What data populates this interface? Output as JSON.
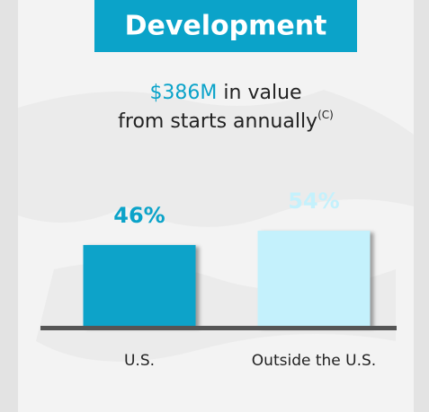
{
  "header": {
    "title": "Development"
  },
  "subtitle": {
    "highlight": "$386M",
    "text1": "in value",
    "text2": "from starts annually",
    "note": "(C)"
  },
  "chart_data": {
    "type": "bar",
    "categories": [
      "U.S.",
      "Outside the U.S."
    ],
    "values": [
      46,
      54
    ],
    "value_labels": [
      "46%",
      "54%"
    ],
    "colors": [
      "#0ba3c9",
      "#c4f1fc"
    ],
    "label_colors": [
      "#0ba3c9",
      "#c4f1fc"
    ]
  }
}
